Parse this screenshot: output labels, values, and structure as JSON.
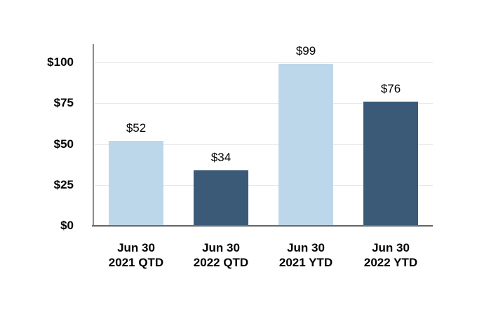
{
  "chart_data": {
    "type": "bar",
    "title": "",
    "xlabel": "",
    "ylabel": "",
    "categories": [
      [
        "Jun 30",
        "2021 QTD"
      ],
      [
        "Jun 30",
        "2022 QTD"
      ],
      [
        "Jun 30",
        "2021 YTD"
      ],
      [
        "Jun 30",
        "2022 YTD"
      ]
    ],
    "values": [
      52,
      34,
      99,
      76
    ],
    "data_labels": [
      "$52",
      "$34",
      "$99",
      "$76"
    ],
    "bar_colors": [
      "#BDD7EA",
      "#3A5A78",
      "#BDD7EA",
      "#3A5A78"
    ],
    "y_ticks": [
      {
        "value": 0,
        "label": "$0"
      },
      {
        "value": 25,
        "label": "$25"
      },
      {
        "value": 50,
        "label": "$50"
      },
      {
        "value": 75,
        "label": "$75"
      },
      {
        "value": 100,
        "label": "$100"
      }
    ],
    "ylim": [
      0,
      111
    ],
    "grid": "horizontal",
    "legend": "none",
    "colors": {
      "light_blue": "#BDD7EA",
      "dark_blue": "#3A5A78",
      "gridline": "#E7E7E7",
      "axis_line": "#8C8C8C",
      "baseline": "#707070",
      "text": "#000000",
      "background": "#FFFFFF"
    }
  }
}
